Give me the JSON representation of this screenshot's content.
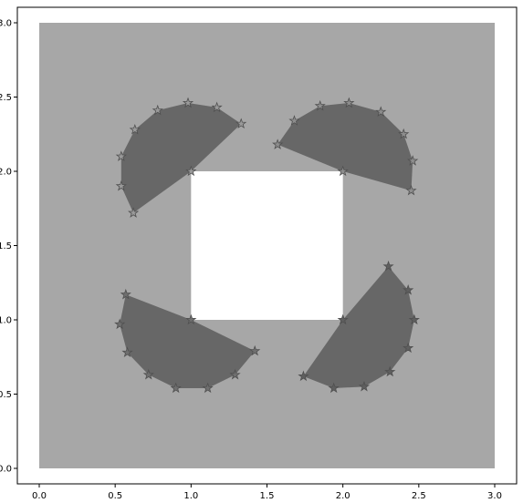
{
  "chart_data": {
    "type": "scatter",
    "title": "",
    "xlabel": "",
    "ylabel": "",
    "xlim": [
      0.0,
      3.0
    ],
    "ylim": [
      0.0,
      3.0
    ],
    "grid": false,
    "xticks": [
      "0.0",
      "0.5",
      "1.0",
      "1.5",
      "2.0",
      "2.5",
      "3.0"
    ],
    "yticks": [
      "0.0",
      "0.5",
      "1.0",
      "1.5",
      "2.0",
      "2.5",
      "3.0"
    ],
    "background_region": {
      "bounds": [
        0.0,
        0.0,
        3.0,
        3.0
      ],
      "color": "#a7a7a7"
    },
    "hole_region": {
      "bounds": [
        1.0,
        1.0,
        2.0,
        2.0
      ],
      "color": "#ffffff"
    },
    "filled_shapes": [
      {
        "color": "#676767",
        "points": [
          [
            0.62,
            1.72
          ],
          [
            0.54,
            1.9
          ],
          [
            0.54,
            2.1
          ],
          [
            0.63,
            2.28
          ],
          [
            0.78,
            2.41
          ],
          [
            0.98,
            2.46
          ],
          [
            1.17,
            2.43
          ],
          [
            1.33,
            2.32
          ],
          [
            1.0,
            2.0
          ]
        ]
      },
      {
        "color": "#676767",
        "points": [
          [
            1.57,
            2.18
          ],
          [
            1.68,
            2.34
          ],
          [
            1.85,
            2.44
          ],
          [
            2.04,
            2.46
          ],
          [
            2.25,
            2.4
          ],
          [
            2.4,
            2.25
          ],
          [
            2.46,
            2.07
          ],
          [
            2.45,
            1.87
          ],
          [
            2.0,
            2.0
          ]
        ]
      },
      {
        "color": "#676767",
        "points": [
          [
            1.0,
            1.0
          ],
          [
            0.57,
            1.17
          ],
          [
            0.53,
            0.97
          ],
          [
            0.58,
            0.78
          ],
          [
            0.72,
            0.63
          ],
          [
            0.9,
            0.54
          ],
          [
            1.11,
            0.54
          ],
          [
            1.29,
            0.63
          ],
          [
            1.42,
            0.79
          ]
        ]
      },
      {
        "color": "#676767",
        "points": [
          [
            2.3,
            1.36
          ],
          [
            2.43,
            1.2
          ],
          [
            2.47,
            1.0
          ],
          [
            2.43,
            0.81
          ],
          [
            2.31,
            0.65
          ],
          [
            2.14,
            0.55
          ],
          [
            1.94,
            0.54
          ],
          [
            1.74,
            0.62
          ],
          [
            2.0,
            1.0
          ]
        ]
      }
    ],
    "series": [
      {
        "marker": "star",
        "color": "#9a9a9a",
        "points": [
          [
            0.62,
            1.72
          ],
          [
            0.54,
            1.9
          ],
          [
            0.54,
            2.1
          ],
          [
            0.63,
            2.28
          ],
          [
            0.78,
            2.41
          ],
          [
            0.98,
            2.46
          ],
          [
            1.17,
            2.43
          ],
          [
            1.33,
            2.32
          ],
          [
            1.0,
            2.0
          ]
        ]
      },
      {
        "marker": "star",
        "color": "#8d8d8d",
        "points": [
          [
            1.57,
            2.18
          ],
          [
            1.68,
            2.34
          ],
          [
            1.85,
            2.44
          ],
          [
            2.04,
            2.46
          ],
          [
            2.25,
            2.4
          ],
          [
            2.4,
            2.25
          ],
          [
            2.46,
            2.07
          ],
          [
            2.45,
            1.87
          ],
          [
            2.0,
            2.0
          ]
        ]
      },
      {
        "marker": "star",
        "color": "#6f6f6f",
        "points": [
          [
            1.0,
            1.0
          ],
          [
            0.57,
            1.17
          ],
          [
            0.53,
            0.97
          ],
          [
            0.58,
            0.78
          ],
          [
            0.72,
            0.63
          ],
          [
            0.9,
            0.54
          ],
          [
            1.11,
            0.54
          ],
          [
            1.29,
            0.63
          ],
          [
            1.42,
            0.79
          ]
        ]
      },
      {
        "marker": "star",
        "color": "#5f5f5f",
        "points": [
          [
            2.3,
            1.36
          ],
          [
            2.43,
            1.2
          ],
          [
            2.47,
            1.0
          ],
          [
            2.43,
            0.81
          ],
          [
            2.31,
            0.65
          ],
          [
            2.14,
            0.55
          ],
          [
            1.94,
            0.54
          ],
          [
            1.74,
            0.62
          ],
          [
            2.0,
            1.0
          ]
        ]
      }
    ]
  }
}
